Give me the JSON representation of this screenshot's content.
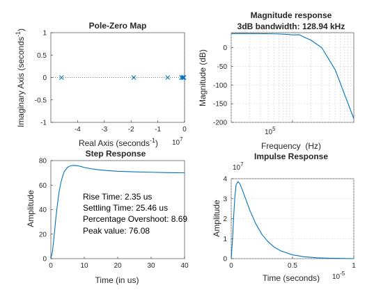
{
  "chart_data": [
    {
      "type": "scatter",
      "title": "Pole-Zero Map",
      "xlabel": "Real Axis (seconds",
      "xlabel_sup": "-1",
      "ylabel": "Imaginary Axis (seconds",
      "ylabel_sup": "-1",
      "x_exponent_base": "10",
      "x_exponent": "7",
      "xlim": [
        -5,
        0
      ],
      "ylim": [
        -1,
        1
      ],
      "xticks": [
        "-4",
        "-3",
        "-2",
        "-1",
        "0"
      ],
      "xtick_values": [
        -4,
        -3,
        -2,
        -1,
        0
      ],
      "yticks": [
        "-1",
        "-0.5",
        "0",
        "0.5",
        "1"
      ],
      "ytick_values": [
        -1,
        -0.5,
        0,
        0.5,
        1
      ],
      "marker": "x",
      "poles": [
        {
          "x": -4.6,
          "y": 0
        },
        {
          "x": -1.9,
          "y": 0
        },
        {
          "x": -0.63,
          "y": 0
        },
        {
          "x": -0.12,
          "y": 0
        },
        {
          "x": -0.07,
          "y": 0
        },
        {
          "x": -0.04,
          "y": 0
        },
        {
          "x": -0.02,
          "y": 0
        }
      ],
      "color": "#0072bd"
    },
    {
      "type": "line",
      "title": "Magnitude response",
      "subtitle": "3dB bandwidth: 128.94 kHz",
      "xlabel": "Frequency  (Hz)",
      "ylabel": "Magnitude (dB)",
      "xscale": "log",
      "xlim": [
        10000,
        1000000
      ],
      "ylim": [
        -200,
        40
      ],
      "xticks_label_base": "10",
      "xticks_label_exp": "5",
      "xtick_major": 100000,
      "yticks": [
        "-200",
        "-150",
        "-100",
        "-50",
        "0"
      ],
      "ytick_values": [
        -200,
        -150,
        -100,
        -50,
        0
      ],
      "series": [
        {
          "x": [
            10000,
            20000,
            40000,
            60000,
            80000,
            100000,
            128940,
            160000,
            200000,
            300000,
            500000,
            1000000
          ],
          "y": [
            37.6,
            37.5,
            37.2,
            36.5,
            35.5,
            34.0,
            34.6,
            27.0,
            20.0,
            0.0,
            -60.0,
            -190.0
          ]
        }
      ],
      "color": "#0072bd"
    },
    {
      "type": "line",
      "title": "Step Response",
      "xlabel": "Time (in us)",
      "ylabel": "Amplitude",
      "xlim": [
        0,
        40
      ],
      "ylim": [
        0,
        80
      ],
      "xticks": [
        "0",
        "10",
        "20",
        "30",
        "40"
      ],
      "xtick_values": [
        0,
        10,
        20,
        30,
        40
      ],
      "yticks": [
        "0",
        "20",
        "40",
        "60",
        "80"
      ],
      "ytick_values": [
        0,
        20,
        40,
        60,
        80
      ],
      "annotations": [
        "Rise Time: 2.35 us",
        "Settling Time: 25.46 us",
        "Percentage Overshoot: 8.69",
        "Peak value: 76.08"
      ],
      "series": [
        {
          "x": [
            0,
            0.5,
            1,
            1.5,
            2,
            2.5,
            3,
            3.5,
            4,
            5,
            6,
            7,
            8,
            9,
            10,
            12,
            14,
            17,
            20,
            25,
            30,
            35,
            40
          ],
          "y": [
            0,
            6,
            19,
            33,
            45,
            55,
            62,
            67,
            71,
            74.5,
            75.9,
            76.08,
            75.8,
            75.2,
            74.4,
            73.4,
            72.6,
            71.8,
            71.3,
            70.8,
            70.5,
            70.2,
            70.0
          ]
        }
      ],
      "color": "#0072bd"
    },
    {
      "type": "line",
      "title": "Impulse Response",
      "xlabel": "Time (seconds)",
      "ylabel": "Amplitude",
      "x_exponent_base": "10",
      "x_exponent": "-5",
      "y_exponent_base": "10",
      "y_exponent": "7",
      "xlim": [
        0,
        1
      ],
      "ylim": [
        0,
        4
      ],
      "xticks": [
        "0",
        "0.5",
        "1"
      ],
      "xtick_values": [
        0,
        0.5,
        1
      ],
      "yticks": [
        "0",
        "1",
        "2",
        "3",
        "4"
      ],
      "ytick_values": [
        0,
        1,
        2,
        3,
        4
      ],
      "series": [
        {
          "x": [
            0,
            0.01,
            0.02,
            0.03,
            0.04,
            0.055,
            0.07,
            0.09,
            0.12,
            0.15,
            0.2,
            0.25,
            0.3,
            0.35,
            0.4,
            0.5,
            0.6,
            0.7,
            0.8,
            0.9,
            1.0
          ],
          "y": [
            0,
            0.9,
            2.1,
            3.1,
            3.7,
            3.85,
            3.75,
            3.45,
            2.95,
            2.45,
            1.75,
            1.22,
            0.85,
            0.58,
            0.4,
            0.19,
            0.09,
            0.04,
            0.02,
            0.01,
            0.0
          ]
        }
      ],
      "color": "#0072bd"
    }
  ]
}
